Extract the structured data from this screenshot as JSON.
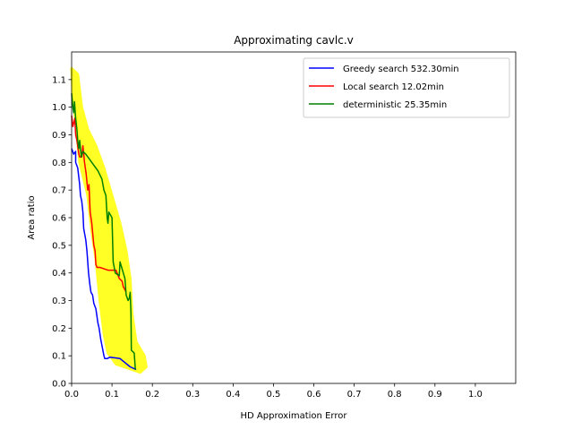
{
  "chart_data": {
    "type": "line",
    "title": "Approximating cavlc.v",
    "xlabel": "HD Approximation Error",
    "ylabel": "Area ratio",
    "xlim": [
      0.0,
      1.1
    ],
    "ylim": [
      0.0,
      1.2
    ],
    "xticks": [
      "0.0",
      "0.1",
      "0.2",
      "0.3",
      "0.4",
      "0.5",
      "0.6",
      "0.7",
      "0.8",
      "0.9",
      "1.0"
    ],
    "yticks": [
      "0.0",
      "0.1",
      "0.2",
      "0.3",
      "0.4",
      "0.5",
      "0.6",
      "0.7",
      "0.8",
      "0.9",
      "1.0",
      "1.1"
    ],
    "grid": false,
    "legend_position": "top-right",
    "scatter": {
      "color": "#ffff00",
      "envelope_left": [
        [
          0.0,
          1.14
        ],
        [
          0.003,
          1.04
        ],
        [
          0.01,
          0.95
        ],
        [
          0.02,
          0.8
        ],
        [
          0.04,
          0.68
        ],
        [
          0.05,
          0.55
        ],
        [
          0.06,
          0.45
        ],
        [
          0.07,
          0.3
        ],
        [
          0.08,
          0.18
        ],
        [
          0.09,
          0.11
        ],
        [
          0.11,
          0.07
        ],
        [
          0.15,
          0.05
        ]
      ],
      "envelope_right": [
        [
          0.0,
          1.14
        ],
        [
          0.015,
          1.12
        ],
        [
          0.025,
          1.0
        ],
        [
          0.04,
          0.92
        ],
        [
          0.06,
          0.86
        ],
        [
          0.08,
          0.78
        ],
        [
          0.1,
          0.68
        ],
        [
          0.12,
          0.58
        ],
        [
          0.135,
          0.48
        ],
        [
          0.145,
          0.38
        ],
        [
          0.15,
          0.25
        ],
        [
          0.16,
          0.15
        ],
        [
          0.18,
          0.1
        ],
        [
          0.185,
          0.06
        ],
        [
          0.17,
          0.04
        ],
        [
          0.15,
          0.05
        ]
      ]
    },
    "series": [
      {
        "name": "Greedy search 532.30min",
        "color": "#0000ff",
        "points": [
          [
            0.0,
            0.85
          ],
          [
            0.005,
            0.83
          ],
          [
            0.01,
            0.84
          ],
          [
            0.01,
            0.8
          ],
          [
            0.015,
            0.78
          ],
          [
            0.02,
            0.72
          ],
          [
            0.022,
            0.68
          ],
          [
            0.025,
            0.66
          ],
          [
            0.028,
            0.62
          ],
          [
            0.03,
            0.56
          ],
          [
            0.035,
            0.52
          ],
          [
            0.038,
            0.48
          ],
          [
            0.04,
            0.44
          ],
          [
            0.042,
            0.4
          ],
          [
            0.045,
            0.36
          ],
          [
            0.048,
            0.33
          ],
          [
            0.052,
            0.32
          ],
          [
            0.055,
            0.29
          ],
          [
            0.06,
            0.27
          ],
          [
            0.065,
            0.22
          ],
          [
            0.068,
            0.2
          ],
          [
            0.072,
            0.16
          ],
          [
            0.076,
            0.13
          ],
          [
            0.08,
            0.1
          ],
          [
            0.082,
            0.09
          ],
          [
            0.088,
            0.09
          ],
          [
            0.095,
            0.095
          ],
          [
            0.12,
            0.09
          ],
          [
            0.145,
            0.06
          ],
          [
            0.16,
            0.05
          ]
        ]
      },
      {
        "name": "Local search 12.02min",
        "color": "#ff0000",
        "points": [
          [
            0.0,
            0.97
          ],
          [
            0.003,
            0.93
          ],
          [
            0.008,
            0.96
          ],
          [
            0.01,
            0.9
          ],
          [
            0.013,
            0.88
          ],
          [
            0.018,
            0.83
          ],
          [
            0.02,
            0.82
          ],
          [
            0.025,
            0.82
          ],
          [
            0.028,
            0.86
          ],
          [
            0.032,
            0.8
          ],
          [
            0.036,
            0.76
          ],
          [
            0.04,
            0.7
          ],
          [
            0.043,
            0.72
          ],
          [
            0.046,
            0.62
          ],
          [
            0.05,
            0.58
          ],
          [
            0.055,
            0.5
          ],
          [
            0.058,
            0.48
          ],
          [
            0.06,
            0.43
          ],
          [
            0.063,
            0.42
          ],
          [
            0.07,
            0.42
          ],
          [
            0.09,
            0.41
          ],
          [
            0.11,
            0.41
          ],
          [
            0.118,
            0.38
          ],
          [
            0.125,
            0.37
          ],
          [
            0.128,
            0.35
          ],
          [
            0.132,
            0.34
          ],
          [
            0.135,
            0.33
          ]
        ]
      },
      {
        "name": "deterministic 25.35min",
        "color": "#008000",
        "points": [
          [
            0.0,
            1.05
          ],
          [
            0.003,
            1.0
          ],
          [
            0.005,
            0.98
          ],
          [
            0.007,
            1.02
          ],
          [
            0.01,
            0.96
          ],
          [
            0.013,
            0.92
          ],
          [
            0.015,
            0.88
          ],
          [
            0.018,
            0.85
          ],
          [
            0.02,
            0.88
          ],
          [
            0.024,
            0.82
          ],
          [
            0.028,
            0.84
          ],
          [
            0.035,
            0.83
          ],
          [
            0.045,
            0.81
          ],
          [
            0.055,
            0.79
          ],
          [
            0.065,
            0.77
          ],
          [
            0.075,
            0.74
          ],
          [
            0.08,
            0.7
          ],
          [
            0.085,
            0.68
          ],
          [
            0.088,
            0.6
          ],
          [
            0.09,
            0.58
          ],
          [
            0.092,
            0.62
          ],
          [
            0.1,
            0.6
          ],
          [
            0.103,
            0.44
          ],
          [
            0.108,
            0.4
          ],
          [
            0.118,
            0.39
          ],
          [
            0.12,
            0.44
          ],
          [
            0.128,
            0.4
          ],
          [
            0.132,
            0.38
          ],
          [
            0.135,
            0.32
          ],
          [
            0.14,
            0.3
          ],
          [
            0.143,
            0.31
          ],
          [
            0.145,
            0.33
          ],
          [
            0.147,
            0.25
          ],
          [
            0.148,
            0.12
          ],
          [
            0.155,
            0.11
          ],
          [
            0.158,
            0.05
          ]
        ]
      }
    ]
  }
}
